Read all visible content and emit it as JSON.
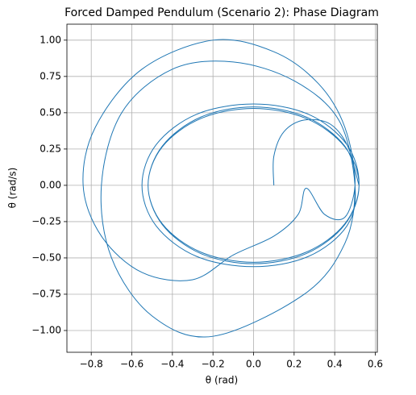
{
  "chart_data": {
    "type": "line",
    "title": "Forced Damped Pendulum (Scenario 2): Phase Diagram",
    "xlabel": "θ (rad)",
    "ylabel": "θ (rad/s)",
    "color": "#1f77b4",
    "grid": true,
    "xlim": [
      -0.92,
      0.61
    ],
    "ylim": [
      -1.15,
      1.11
    ],
    "xticks": [
      {
        "value": -0.8,
        "label": "−0.8"
      },
      {
        "value": -0.6,
        "label": "−0.6"
      },
      {
        "value": -0.4,
        "label": "−0.4"
      },
      {
        "value": -0.2,
        "label": "−0.2"
      },
      {
        "value": 0,
        "label": "0.0"
      },
      {
        "value": 0.2,
        "label": "0.2"
      },
      {
        "value": 0.4,
        "label": "0.4"
      },
      {
        "value": 0.6,
        "label": "0.6"
      }
    ],
    "yticks": [
      {
        "value": -1,
        "label": "−1.00"
      },
      {
        "value": -0.75,
        "label": "−0.75"
      },
      {
        "value": -0.5,
        "label": "−0.50"
      },
      {
        "value": -0.25,
        "label": "−0.25"
      },
      {
        "value": 0,
        "label": "0.00"
      },
      {
        "value": 0.25,
        "label": "0.25"
      },
      {
        "value": 0.5,
        "label": "0.50"
      },
      {
        "value": 0.75,
        "label": "0.75"
      },
      {
        "value": 1,
        "label": "1.00"
      }
    ],
    "x": [
      0.1,
      0.1,
      0.15,
      0.25,
      0.38,
      0.47,
      0.5,
      0.45,
      0.35,
      0.26,
      0.22,
      0.1,
      -0.1,
      -0.3,
      -0.55,
      -0.75,
      -0.84,
      -0.78,
      -0.55,
      -0.2,
      0.1,
      0.32,
      0.45,
      0.5,
      0.45,
      0.25,
      -0.2,
      -0.5,
      -0.7,
      -0.75,
      -0.65,
      -0.4,
      -0.1,
      0.2,
      0.42,
      0.5,
      0.46,
      0.27,
      0,
      -0.28,
      -0.48,
      -0.55,
      -0.48,
      -0.28,
      0,
      0.27,
      0.46,
      0.52,
      0.45,
      0.26,
      0,
      -0.26,
      -0.45,
      -0.52,
      -0.45,
      -0.26,
      0,
      0.26,
      0.45,
      0.52,
      0.45,
      0.26,
      0,
      -0.26,
      -0.45,
      -0.52,
      -0.45,
      -0.26,
      0,
      0.26,
      0.45,
      0.52
    ],
    "values": [
      0,
      0.2,
      0.37,
      0.45,
      0.42,
      0.25,
      0,
      -0.22,
      -0.2,
      -0.02,
      -0.2,
      -0.35,
      -0.48,
      -0.65,
      -0.6,
      -0.35,
      0,
      0.4,
      0.8,
      1.0,
      0.92,
      0.7,
      0.4,
      0,
      -0.4,
      -0.75,
      -1.04,
      -0.9,
      -0.5,
      0,
      0.5,
      0.8,
      0.85,
      0.72,
      0.45,
      0,
      -0.28,
      -0.49,
      -0.56,
      -0.49,
      -0.28,
      0,
      0.28,
      0.49,
      0.56,
      0.49,
      0.28,
      0,
      -0.265,
      -0.46,
      -0.53,
      -0.46,
      -0.265,
      0,
      0.265,
      0.46,
      0.53,
      0.46,
      0.265,
      0,
      -0.27,
      -0.47,
      -0.54,
      -0.47,
      -0.27,
      0,
      0.27,
      0.47,
      0.54,
      0.47,
      0.27,
      0
    ]
  }
}
